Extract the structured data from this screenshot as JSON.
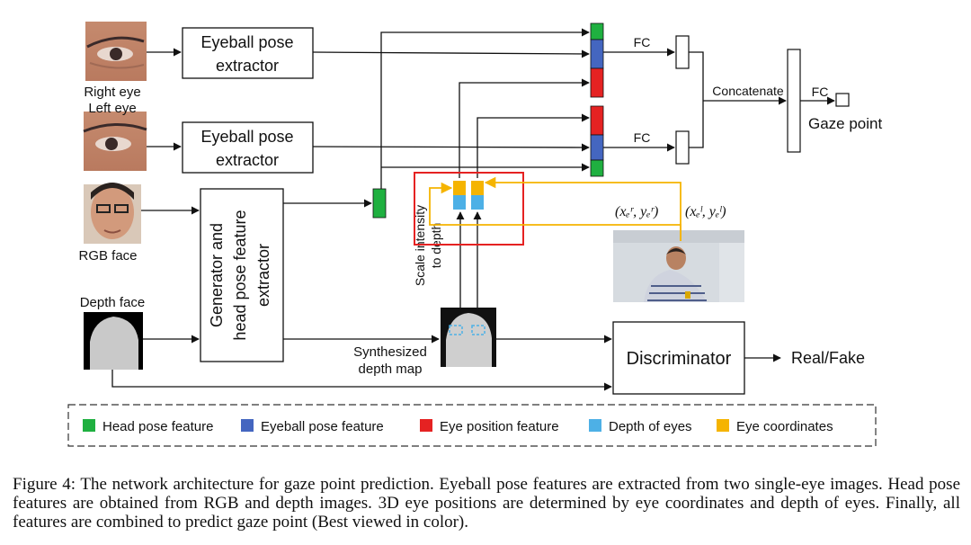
{
  "boxes": {
    "eyeball_extractor_top": [
      "Eyeball pose",
      "extractor"
    ],
    "eyeball_extractor_bottom": [
      "Eyeball pose",
      "extractor"
    ],
    "generator": [
      "Generator and",
      "head pose feature",
      "extractor"
    ],
    "discriminator": "Discriminator"
  },
  "labels": {
    "right_eye": "Right eye",
    "left_eye": "Left eye",
    "rgb_face": "RGB face",
    "depth_face": "Depth face",
    "synthesized": [
      "Synthesized",
      "depth map"
    ],
    "scale_intensity": [
      "Scale intensity",
      "to depth"
    ],
    "fc_top": "FC",
    "fc_bottom": "FC",
    "fc_final": "FC",
    "concatenate": "Concatenate",
    "gaze_point": "Gaze point",
    "real_fake": "Real/Fake",
    "coord_right": "(xₑʳ, yₑʳ)",
    "coord_left": "(xₑˡ, yₑˡ)"
  },
  "legend": [
    {
      "label": "Head pose feature",
      "color": "#1fb040"
    },
    {
      "label": "Eyeball pose feature",
      "color": "#4466c0"
    },
    {
      "label": "Eye position feature",
      "color": "#e52222"
    },
    {
      "label": "Depth of eyes",
      "color": "#4db0e6"
    },
    {
      "label": "Eye coordinates",
      "color": "#f5b400"
    }
  ],
  "colors": {
    "head_pose": "#1fb040",
    "eyeball_pose": "#4466c0",
    "eye_position": "#e52222",
    "depth_of_eyes": "#4db0e6",
    "eye_coordinates": "#f5b400"
  },
  "caption": "Figure 4: The network architecture for gaze point prediction. Eyeball pose features are extracted from two single-eye images. Head pose features are obtained from RGB and depth images. 3D eye positions are determined by eye coordinates and depth of eyes. Finally, all features are combined to predict gaze point (Best viewed in color)."
}
